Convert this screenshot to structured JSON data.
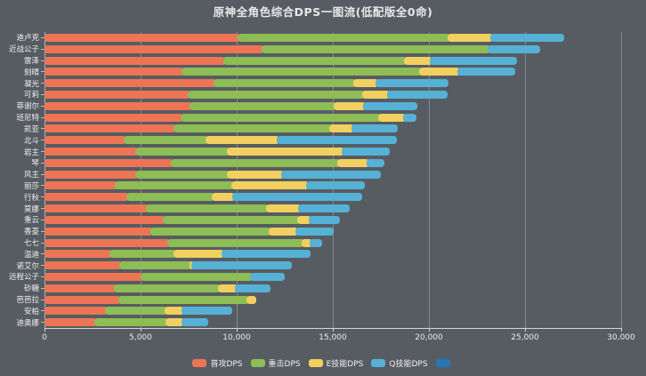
{
  "title": "原神全角色综合DPS一图流(低配版全0命)",
  "colors": {
    "background": "#575c62",
    "normal_attack": "#ed7556",
    "charged_attack": "#8ebd55",
    "elemental_skill": "#f2d05f",
    "elemental_burst": "#56b1d6",
    "extra_legend": "#2278b5",
    "text": "#e8e8e8",
    "grid": "rgba(255,255,255,0.28)"
  },
  "chart_data": {
    "type": "bar",
    "stacked": true,
    "orientation": "horizontal",
    "title": "原神全角色综合DPS一图流(低配版全0命)",
    "xlabel": "",
    "ylabel": "",
    "xlim": [
      0,
      30000
    ],
    "grid": true,
    "legend_position": "bottom",
    "x_tick_values": [
      0,
      5000,
      10000,
      15000,
      20000,
      25000,
      30000
    ],
    "x_tick_labels": [
      "0",
      "5,000",
      "10,000",
      "15,000",
      "20,000",
      "25,000",
      "30,000"
    ],
    "categories": [
      "迪卢克",
      "近战公子",
      "雷泽",
      "刻晴",
      "凝光",
      "可莉",
      "菲谢尔",
      "班尼特",
      "凯亚",
      "北斗",
      "岩主",
      "琴",
      "风主",
      "丽莎",
      "行秋",
      "莫娜",
      "重云",
      "香菱",
      "七七",
      "温迪",
      "诺艾尔",
      "远程公子",
      "砂糖",
      "芭芭拉",
      "安柏",
      "迪奥娜"
    ],
    "series": [
      {
        "name": "普攻DPS",
        "color": "#ed7556",
        "values": [
          10200,
          11450,
          9450,
          7250,
          8950,
          7600,
          7700,
          7200,
          6850,
          4250,
          4850,
          6700,
          4850,
          3800,
          4400,
          5400,
          6300,
          5650,
          6550,
          3500,
          4050,
          5150,
          3750,
          4000,
          3300,
          2750
        ]
      },
      {
        "name": "重击DPS",
        "color": "#8ebd55",
        "values": [
          10900,
          11750,
          9400,
          12400,
          7250,
          9050,
          7500,
          10300,
          8100,
          4250,
          4800,
          8650,
          4800,
          6050,
          4450,
          6250,
          7000,
          6150,
          6950,
          3350,
          3650,
          5700,
          5400,
          6650,
          3100,
          3700
        ]
      },
      {
        "name": "E技能DPS",
        "color": "#f2d05f",
        "values": [
          2250,
          0,
          1350,
          1950,
          1150,
          1300,
          1500,
          1300,
          1150,
          3700,
          5950,
          1550,
          2800,
          3900,
          1050,
          1700,
          600,
          1400,
          450,
          2500,
          100,
          0,
          900,
          350,
          850,
          800
        ]
      },
      {
        "name": "Q技能DPS",
        "color": "#56b1d6",
        "values": [
          3700,
          2600,
          4400,
          2900,
          3650,
          3000,
          2700,
          550,
          2300,
          6150,
          2350,
          800,
          5050,
          2900,
          6650,
          2550,
          1450,
          1850,
          500,
          4500,
          5050,
          1650,
          1700,
          0,
          2500,
          1250
        ]
      },
      {
        "name": "",
        "color": "#2278b5",
        "values": [
          0,
          0,
          0,
          0,
          0,
          0,
          0,
          0,
          0,
          0,
          0,
          0,
          0,
          0,
          0,
          0,
          0,
          0,
          0,
          0,
          0,
          0,
          0,
          0,
          0,
          0
        ]
      }
    ],
    "totals": [
      27050,
      25800,
      24600,
      24500,
      21000,
      20950,
      19400,
      19350,
      18400,
      18350,
      17950,
      17700,
      17500,
      16650,
      16550,
      15900,
      15350,
      15050,
      14450,
      13850,
      12850,
      12500,
      11750,
      11000,
      9750,
      8500
    ]
  }
}
